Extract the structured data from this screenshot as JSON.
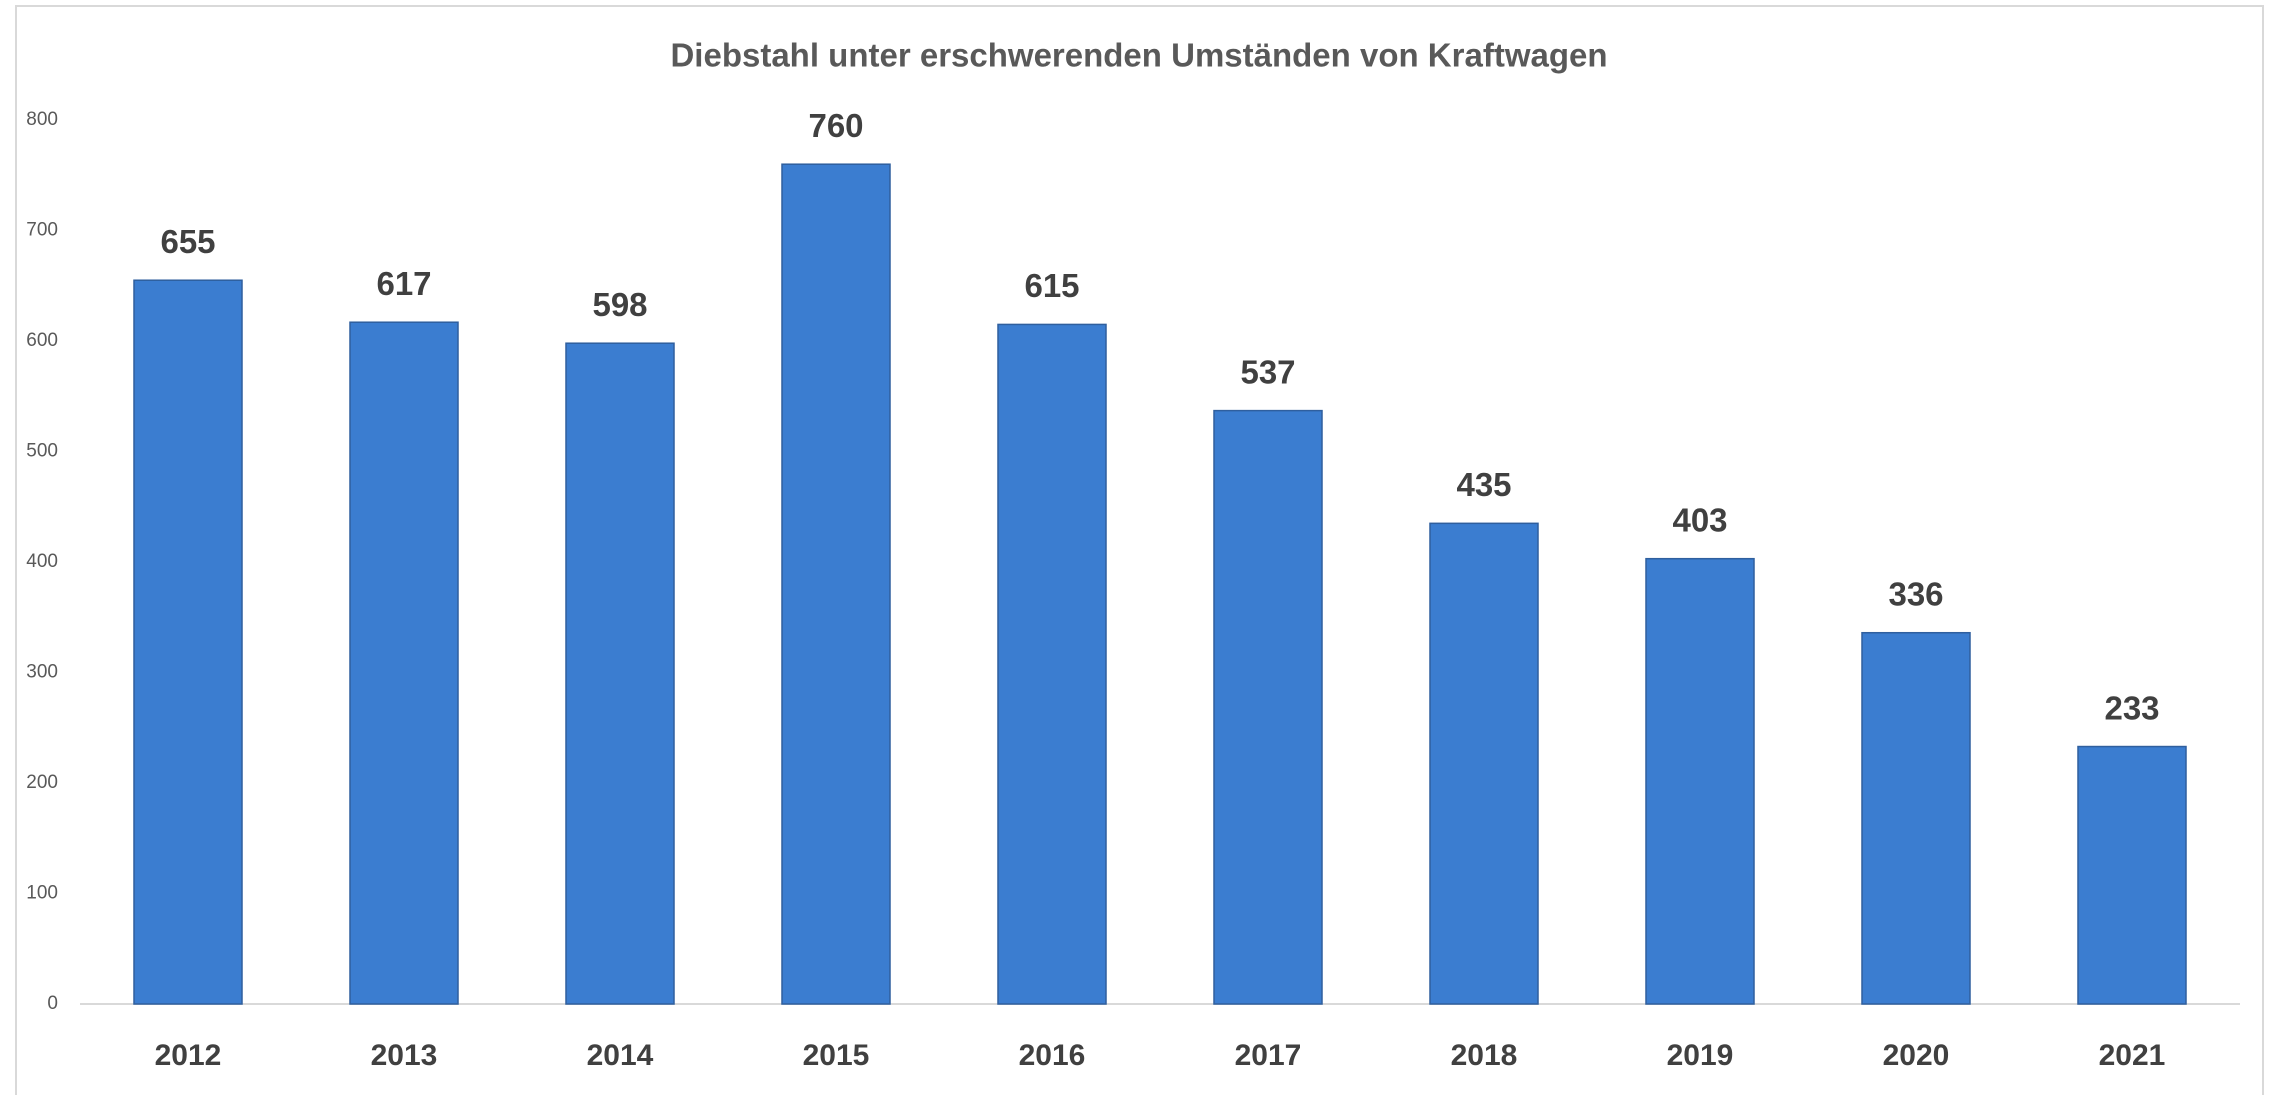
{
  "chart_data": {
    "type": "bar",
    "title": "Diebstahl unter erschwerenden Umständen von Kraftwagen",
    "categories": [
      "2012",
      "2013",
      "2014",
      "2015",
      "2016",
      "2017",
      "2018",
      "2019",
      "2020",
      "2021"
    ],
    "values": [
      655,
      617,
      598,
      760,
      615,
      537,
      435,
      403,
      336,
      233
    ],
    "color": "#3b7dd0",
    "ylim": [
      0,
      800
    ],
    "yticks": [
      0,
      100,
      200,
      300,
      400,
      500,
      600,
      700,
      800
    ],
    "grid": false
  }
}
